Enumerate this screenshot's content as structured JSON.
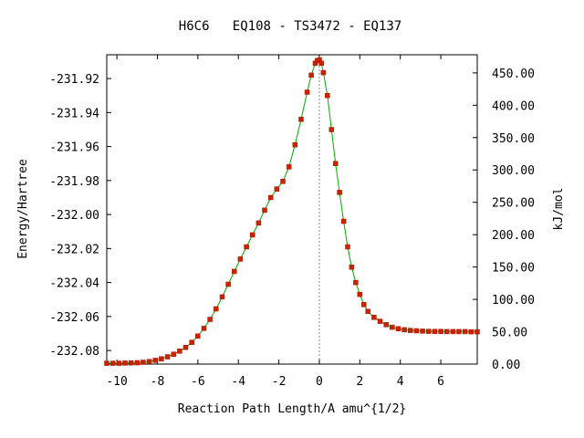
{
  "chart_data": {
    "type": "line",
    "title": "H6C6   EQ108 - TS3472 - EQ137",
    "xlabel": "Reaction Path Length/A amu^{1/2}",
    "ylabel": "Energy/Hartree",
    "y2label": "kJ/mol",
    "xlim": [
      -10.5,
      7.8
    ],
    "ylim": [
      -232.088,
      -231.906
    ],
    "y2lim": [
      0,
      478
    ],
    "x_ticks": [
      -10,
      -8,
      -6,
      -4,
      -2,
      0,
      2,
      4,
      6
    ],
    "x_tick_labels": [
      "-10",
      "-8",
      "-6",
      "-4",
      "-2",
      "0",
      "2",
      "4",
      "6"
    ],
    "y_ticks": [
      -231.92,
      -231.94,
      -231.96,
      -231.98,
      -232.0,
      -232.02,
      -232.04,
      -232.06,
      -232.08
    ],
    "y_tick_labels": [
      "-231.92",
      "-231.94",
      "-231.96",
      "-231.98",
      "-232.00",
      "-232.02",
      "-232.04",
      "-232.06",
      "-232.08"
    ],
    "y2_ticks": [
      0,
      50,
      100,
      150,
      200,
      250,
      300,
      350,
      400,
      450
    ],
    "y2_tick_labels": [
      "0.00",
      "50.00",
      "100.00",
      "150.00",
      "200.00",
      "250.00",
      "300.00",
      "350.00",
      "400.00",
      "450.00"
    ],
    "ts_x": 0,
    "grid": false,
    "line_color": "#00aa00",
    "marker_color": "#cc2200",
    "series": [
      {
        "x": [
          -10.5,
          -10.2,
          -9.9,
          -9.6,
          -9.3,
          -9.0,
          -8.7,
          -8.4,
          -8.1,
          -7.8,
          -7.5,
          -7.2,
          -6.9,
          -6.6,
          -6.3,
          -6.0,
          -5.7,
          -5.4,
          -5.1,
          -4.8,
          -4.5,
          -4.2,
          -3.9,
          -3.6,
          -3.3,
          -3.0,
          -2.7,
          -2.4,
          -2.1,
          -1.8,
          -1.5,
          -1.2,
          -0.9,
          -0.6,
          -0.4,
          -0.2,
          -0.1,
          0.0,
          0.1,
          0.2,
          0.4,
          0.6,
          0.8,
          1.0,
          1.2,
          1.4,
          1.6,
          1.8,
          2.0,
          2.2,
          2.4,
          2.7,
          3.0,
          3.3,
          3.6,
          3.9,
          4.2,
          4.5,
          4.8,
          5.1,
          5.4,
          5.7,
          6.0,
          6.3,
          6.6,
          6.9,
          7.2,
          7.5,
          7.8
        ],
        "y": [
          -232.0875,
          -232.0875,
          -232.0875,
          -232.0874,
          -232.0873,
          -232.0872,
          -232.0869,
          -232.0865,
          -232.0858,
          -232.0849,
          -232.0837,
          -232.0822,
          -232.0804,
          -232.0782,
          -232.0752,
          -232.0715,
          -232.067,
          -232.0617,
          -232.0555,
          -232.0485,
          -232.041,
          -232.0335,
          -232.0262,
          -232.019,
          -232.012,
          -232.005,
          -231.9975,
          -231.99,
          -231.985,
          -231.9805,
          -231.972,
          -231.959,
          -231.944,
          -231.928,
          -231.918,
          -231.911,
          -231.9095,
          -231.909,
          -231.911,
          -231.9165,
          -231.93,
          -231.95,
          -231.97,
          -231.987,
          -232.004,
          -232.019,
          -232.031,
          -232.04,
          -232.047,
          -232.053,
          -232.057,
          -232.0605,
          -232.0628,
          -232.0648,
          -232.0663,
          -232.0672,
          -232.0678,
          -232.0682,
          -232.0684,
          -232.0686,
          -232.0687,
          -232.0688,
          -232.0688,
          -232.0689,
          -232.0689,
          -232.0689,
          -232.0689,
          -232.069,
          -232.069
        ]
      }
    ]
  }
}
